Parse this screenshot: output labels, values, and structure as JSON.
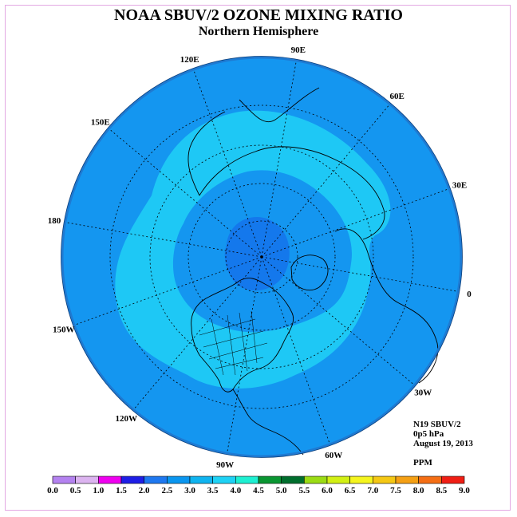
{
  "title": "NOAA SBUV/2 OZONE MIXING RATIO",
  "subtitle": "Northern Hemisphere",
  "longitude_labels": [
    {
      "text": "90E",
      "lon": 90
    },
    {
      "text": "60E",
      "lon": 60
    },
    {
      "text": "30E",
      "lon": 30
    },
    {
      "text": "0",
      "lon": 0
    },
    {
      "text": "30W",
      "lon": -30
    },
    {
      "text": "60W",
      "lon": -60
    },
    {
      "text": "90W",
      "lon": -90
    },
    {
      "text": "120W",
      "lon": -120
    },
    {
      "text": "150W",
      "lon": -150
    },
    {
      "text": "180",
      "lon": 180
    },
    {
      "text": "150E",
      "lon": 150
    },
    {
      "text": "120E",
      "lon": 120
    }
  ],
  "info": {
    "instrument": "N19 SBUV/2",
    "level": "0p5 hPa",
    "date": "August 19, 2013",
    "units": "PPM"
  },
  "colorbar": {
    "ticks": [
      "0.0",
      "0.5",
      "1.0",
      "1.5",
      "2.0",
      "2.5",
      "3.0",
      "3.5",
      "4.0",
      "4.5",
      "5.0",
      "5.5",
      "6.0",
      "6.5",
      "7.0",
      "7.5",
      "8.0",
      "8.5",
      "9.0"
    ],
    "colors": [
      "#b482f0",
      "#dcb4f0",
      "#f000f0",
      "#1e1ee6",
      "#1e78f0",
      "#0a96f0",
      "#0fb4f0",
      "#1ed2f5",
      "#1ef0d2",
      "#0a9632",
      "#006e2d",
      "#9bdc14",
      "#d2f014",
      "#f5f51e",
      "#f5c814",
      "#f5a014",
      "#f56e14",
      "#f01e14",
      "#8c5037"
    ]
  },
  "colors": {
    "ocean_fill": "#1496f0",
    "band_light": "#1ec8f5",
    "band_dark": "#1478ec",
    "rim": "#1e7ad2"
  }
}
